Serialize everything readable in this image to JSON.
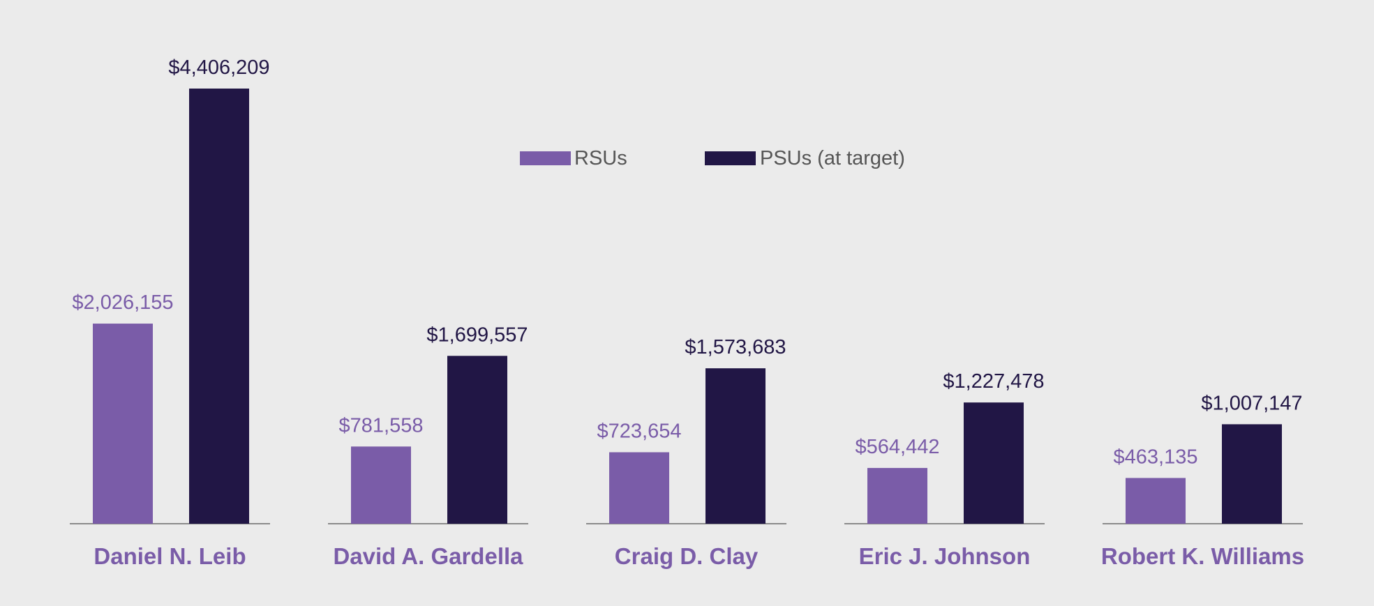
{
  "chart_data": {
    "type": "bar",
    "title": "",
    "xlabel": "",
    "ylabel": "",
    "categories": [
      "Daniel N. Leib",
      "David A. Gardella",
      "Craig D. Clay",
      "Eric J. Johnson",
      "Robert K. Williams"
    ],
    "series": [
      {
        "name": "RSUs",
        "color": "#7a5ca8",
        "values": [
          2026155,
          781558,
          723654,
          564442,
          463135
        ],
        "labels": [
          "$2,026,155",
          "$781,558",
          "$723,654",
          "$564,442",
          "$463,135"
        ]
      },
      {
        "name": "PSUs (at target)",
        "color": "#211645",
        "values": [
          4406209,
          1699557,
          1573683,
          1227478,
          1007147
        ],
        "labels": [
          "$4,406,209",
          "$1,699,557",
          "$1,573,683",
          "$1,227,478",
          "$1,007,147"
        ]
      }
    ],
    "ylim": [
      0,
      4406209
    ],
    "grid": false,
    "legend_position": "top-center",
    "category_label_color": "#7a5ca8",
    "axis_color": "#8a8a8a",
    "value_label_colors": [
      "#7a5ca8",
      "#211645"
    ]
  }
}
